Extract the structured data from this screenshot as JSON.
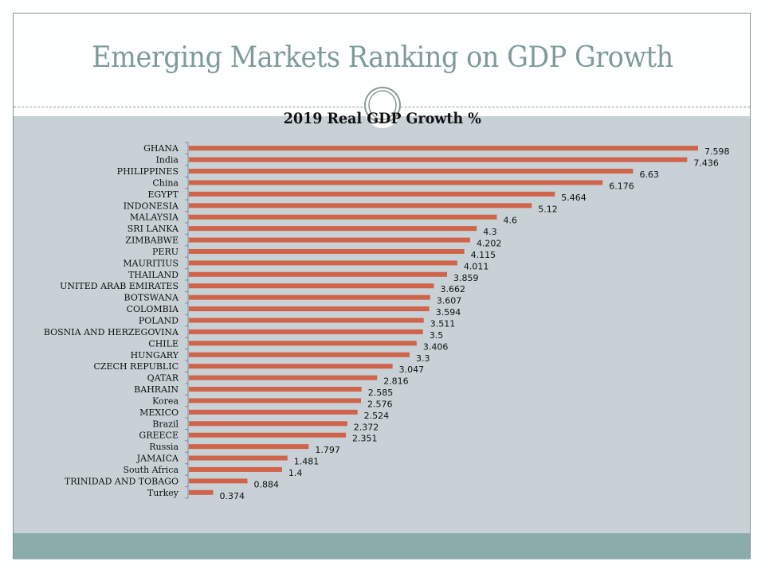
{
  "slide": {
    "title": "Emerging Markets Ranking on GDP Growth"
  },
  "colors": {
    "title_text": "#7f9a99",
    "content_background": "#c7d1d6",
    "footer_band": "#8aacab",
    "bar": "#d0644a"
  },
  "chart_data": {
    "type": "bar",
    "orientation": "horizontal",
    "title": "2019 Real GDP Growth %",
    "xlabel": "",
    "ylabel": "",
    "grid": false,
    "legend": "none",
    "categories": [
      "GHANA",
      "India",
      "PHILIPPINES",
      "China",
      "EGYPT",
      "INDONESIA",
      "MALAYSIA",
      "SRI LANKA",
      "ZIMBABWE",
      "PERU",
      "MAURITIUS",
      "THAILAND",
      "UNITED ARAB EMIRATES",
      "BOTSWANA",
      "COLOMBIA",
      "POLAND",
      "BOSNIA AND HERZEGOVINA",
      "CHILE",
      "HUNGARY",
      "CZECH REPUBLIC",
      "QATAR",
      "BAHRAIN",
      "Korea",
      "MEXICO",
      "Brazil",
      "GREECE",
      "Russia",
      "JAMAICA",
      "South Africa",
      "TRINIDAD AND TOBAGO",
      "Turkey"
    ],
    "values": [
      7.598,
      7.436,
      6.63,
      6.176,
      5.464,
      5.12,
      4.6,
      4.3,
      4.202,
      4.115,
      4.011,
      3.859,
      3.662,
      3.607,
      3.594,
      3.511,
      3.5,
      3.406,
      3.3,
      3.047,
      2.816,
      2.585,
      2.576,
      2.524,
      2.372,
      2.351,
      1.797,
      1.481,
      1.4,
      0.884,
      0.374
    ],
    "data_labels": [
      "7.598",
      "7.436",
      "6.63",
      "6.176",
      "5.464",
      "5.12",
      "4.6",
      "4.3",
      "4.202",
      "4.115",
      "4.011",
      "3.859",
      "3.662",
      "3.607",
      "3.594",
      "3.511",
      "3.5",
      "3.406",
      "3.3",
      "3.047",
      "2.816",
      "2.585",
      "2.576",
      "2.524",
      "2.372",
      "2.351",
      "1.797",
      "1.481",
      "1.4",
      "0.884",
      "0.374"
    ],
    "xlim": [
      0,
      8
    ]
  }
}
